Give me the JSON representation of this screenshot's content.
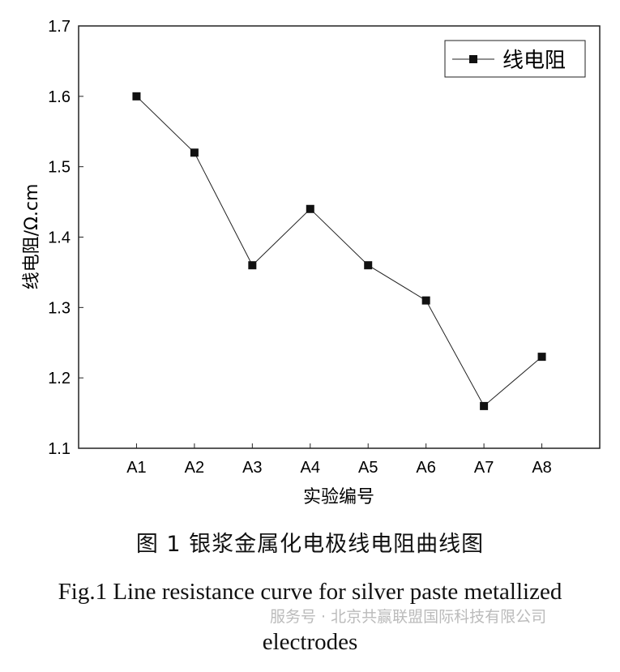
{
  "chart_data": {
    "type": "line",
    "categories": [
      "A1",
      "A2",
      "A3",
      "A4",
      "A5",
      "A6",
      "A7",
      "A8"
    ],
    "series": [
      {
        "name": "线电阻",
        "values": [
          1.6,
          1.52,
          1.36,
          1.44,
          1.36,
          1.31,
          1.16,
          1.23
        ]
      }
    ],
    "xlabel": "实验编号",
    "ylabel": "线电阻/Ω.cm",
    "ylim": [
      1.1,
      1.7
    ],
    "yticks": [
      "1.1",
      "1.2",
      "1.3",
      "1.4",
      "1.5",
      "1.6",
      "1.7"
    ],
    "legend_position": "top-right",
    "grid": false
  },
  "caption_cn": "图 1  银浆金属化电极线电阻曲线图",
  "caption_en_line1": "Fig.1 Line resistance curve for silver paste metallized",
  "caption_en_line2": "electrodes",
  "watermark": "服务号 · 北京共赢联盟国际科技有限公司"
}
